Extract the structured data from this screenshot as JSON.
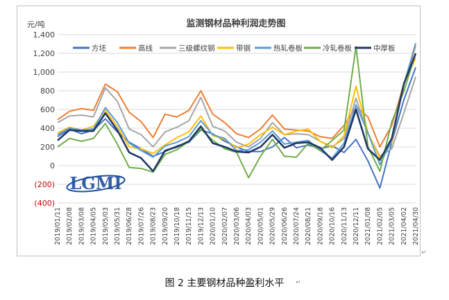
{
  "caption": "图 2  主要钢材品种盈利水平",
  "return_mark": "↵",
  "logo_text": "LGMI",
  "chart_data": {
    "type": "line",
    "title": "监测钢材品种利润走势图",
    "ylabel": "元/吨",
    "xlabel": "",
    "ylim": [
      -400,
      1400
    ],
    "yticks": [
      -400,
      -200,
      0,
      200,
      400,
      600,
      800,
      1000,
      1200,
      1400
    ],
    "ytick_labels": [
      "(400)",
      "(200)",
      "0",
      "200",
      "400",
      "600",
      "800",
      "1,000",
      "1,200",
      "1,400"
    ],
    "x_tick_labels": [
      "2019/01/11",
      "2019/02/08",
      "2019/03/08",
      "2019/04/05",
      "2019/05/03",
      "2019/05/31",
      "2019/06/28",
      "2019/07/26",
      "2019/08/23",
      "2019/09/20",
      "2019/10/18",
      "2019/11/15",
      "2019/12/13",
      "2020/01/10",
      "2020/02/07",
      "2020/03/06",
      "2020/04/03",
      "2020/05/01",
      "2020/05/29",
      "2020/06/26",
      "2020/07/24",
      "2020/08/21",
      "2020/09/18",
      "2020/10/16",
      "2020/11/13",
      "2020/12/11",
      "2021/01/08",
      "2021/02/05",
      "2021/03/05",
      "2021/04/02",
      "2021/04/30"
    ],
    "grid": true,
    "legend_position": "top",
    "series": [
      {
        "name": "方坯",
        "color": "#4472c4",
        "values": [
          310,
          390,
          340,
          380,
          500,
          360,
          250,
          180,
          100,
          150,
          210,
          250,
          380,
          340,
          260,
          200,
          150,
          150,
          200,
          300,
          190,
          220,
          180,
          210,
          140,
          280,
          50,
          -240,
          250,
          700,
          1050
        ]
      },
      {
        "name": "高线",
        "color": "#ed7d31",
        "values": [
          490,
          580,
          610,
          590,
          870,
          790,
          570,
          470,
          300,
          550,
          520,
          590,
          800,
          550,
          460,
          340,
          300,
          390,
          540,
          390,
          380,
          370,
          310,
          290,
          430,
          630,
          520,
          200,
          430,
          870,
          1280
        ]
      },
      {
        "name": "三级螺纹钢",
        "color": "#a5a5a5",
        "values": [
          460,
          530,
          540,
          520,
          830,
          690,
          390,
          330,
          200,
          360,
          410,
          480,
          730,
          420,
          370,
          250,
          200,
          290,
          460,
          330,
          340,
          330,
          260,
          200,
          290,
          720,
          340,
          100,
          180,
          560,
          950
        ]
      },
      {
        "name": "带钢",
        "color": "#ffc000",
        "values": [
          350,
          410,
          380,
          420,
          590,
          420,
          200,
          180,
          130,
          220,
          300,
          360,
          530,
          320,
          280,
          190,
          230,
          330,
          410,
          330,
          370,
          390,
          260,
          190,
          320,
          850,
          350,
          80,
          250,
          880,
          1150
        ]
      },
      {
        "name": "热轧卷板",
        "color": "#5b9bd5",
        "values": [
          330,
          400,
          380,
          390,
          620,
          460,
          240,
          160,
          90,
          210,
          250,
          310,
          480,
          330,
          290,
          160,
          170,
          250,
          370,
          230,
          250,
          270,
          160,
          80,
          240,
          650,
          350,
          10,
          270,
          860,
          1310
        ]
      },
      {
        "name": "冷轧卷板",
        "color": "#70ad47",
        "values": [
          200,
          290,
          260,
          290,
          450,
          230,
          -20,
          -30,
          -70,
          120,
          170,
          260,
          390,
          270,
          180,
          140,
          -130,
          100,
          280,
          100,
          90,
          240,
          160,
          270,
          380,
          1270,
          200,
          -60,
          470,
          790,
          1200
        ]
      },
      {
        "name": "中厚板",
        "color": "#203864",
        "values": [
          270,
          380,
          370,
          370,
          560,
          380,
          140,
          80,
          -60,
          160,
          200,
          260,
          420,
          240,
          200,
          150,
          140,
          200,
          330,
          190,
          240,
          250,
          190,
          60,
          200,
          600,
          180,
          60,
          290,
          870,
          1200
        ]
      }
    ]
  }
}
